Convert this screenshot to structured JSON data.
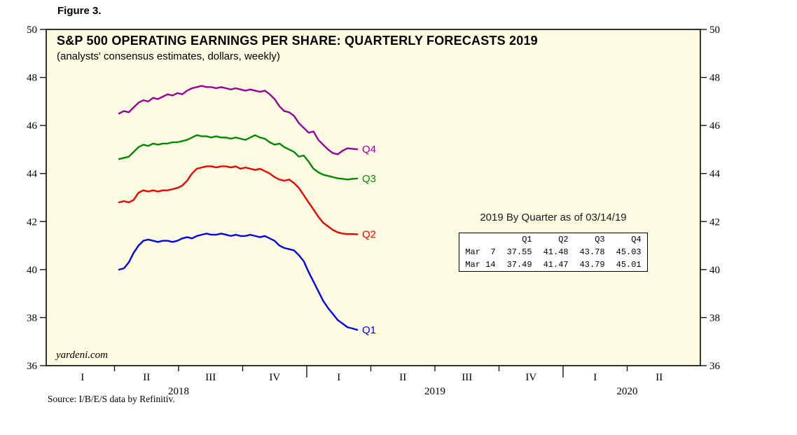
{
  "figure_label": "Figure 3.",
  "chart": {
    "title": "S&P 500 OPERATING EARNINGS PER SHARE: QUARTERLY FORECASTS 2019",
    "subtitle": "(analysts' consensus estimates, dollars, weekly)",
    "watermark": "yardeni.com",
    "source": "Source: I/B/E/S data by Refinitiv."
  },
  "annotation": {
    "title": "2019 By Quarter as of 03/14/19",
    "table": {
      "columns": [
        "Q1",
        "Q2",
        "Q3",
        "Q4"
      ],
      "rows": [
        {
          "label": "Mar  7",
          "values": [
            "37.55",
            "41.48",
            "43.78",
            "45.03"
          ]
        },
        {
          "label": "Mar 14",
          "values": [
            "37.49",
            "41.47",
            "43.79",
            "45.01"
          ]
        }
      ]
    }
  },
  "colors": {
    "plot_background": "#FDFCE2",
    "axis": "#000000"
  },
  "chart_data": {
    "type": "line",
    "title": "S&P 500 OPERATING EARNINGS PER SHARE: QUARTERLY FORECASTS 2019",
    "subtitle": "(analysts' consensus estimates, dollars, weekly)",
    "ylabel": "dollars",
    "ylim": [
      36,
      50
    ],
    "y_ticks": [
      36,
      38,
      40,
      42,
      44,
      46,
      48,
      50
    ],
    "grid": false,
    "x_unit": "week_index",
    "x_axis": {
      "quarter_labels": [
        "I",
        "II",
        "III",
        "IV",
        "I",
        "II",
        "III",
        "IV",
        "I",
        "II"
      ],
      "year_labels": [
        "2018",
        "2019",
        "2020"
      ],
      "year_quarter_spans": [
        [
          0,
          3
        ],
        [
          4,
          7
        ],
        [
          8,
          9
        ]
      ]
    },
    "series": [
      {
        "name": "Q4",
        "color": "#990099",
        "values": [
          46.5,
          46.6,
          46.55,
          46.75,
          46.95,
          47.05,
          47.0,
          47.15,
          47.1,
          47.2,
          47.3,
          47.25,
          47.35,
          47.3,
          47.45,
          47.55,
          47.6,
          47.65,
          47.6,
          47.6,
          47.55,
          47.6,
          47.55,
          47.5,
          47.55,
          47.5,
          47.45,
          47.5,
          47.45,
          47.4,
          47.45,
          47.3,
          47.1,
          46.8,
          46.6,
          46.55,
          46.4,
          46.1,
          45.9,
          45.7,
          45.75,
          45.4,
          45.2,
          45.0,
          44.85,
          44.8,
          44.95,
          45.05,
          45.03,
          45.01
        ]
      },
      {
        "name": "Q3",
        "color": "#008A00",
        "values": [
          44.6,
          44.65,
          44.7,
          44.9,
          45.1,
          45.2,
          45.15,
          45.25,
          45.2,
          45.25,
          45.25,
          45.3,
          45.3,
          45.35,
          45.4,
          45.5,
          45.6,
          45.55,
          45.55,
          45.5,
          45.55,
          45.5,
          45.5,
          45.45,
          45.5,
          45.45,
          45.4,
          45.5,
          45.6,
          45.5,
          45.45,
          45.3,
          45.2,
          45.25,
          45.1,
          45.0,
          44.9,
          44.7,
          44.75,
          44.5,
          44.2,
          44.05,
          43.95,
          43.9,
          43.85,
          43.8,
          43.78,
          43.75,
          43.78,
          43.79
        ]
      },
      {
        "name": "Q2",
        "color": "#EE0000",
        "values": [
          42.8,
          42.85,
          42.8,
          42.9,
          43.2,
          43.3,
          43.25,
          43.3,
          43.25,
          43.3,
          43.3,
          43.35,
          43.4,
          43.5,
          43.7,
          44.0,
          44.2,
          44.25,
          44.3,
          44.3,
          44.25,
          44.3,
          44.3,
          44.25,
          44.3,
          44.2,
          44.25,
          44.2,
          44.15,
          44.2,
          44.1,
          44.0,
          43.85,
          43.75,
          43.7,
          43.75,
          43.6,
          43.4,
          43.1,
          42.8,
          42.5,
          42.2,
          41.95,
          41.8,
          41.65,
          41.55,
          41.5,
          41.48,
          41.48,
          41.47
        ]
      },
      {
        "name": "Q1",
        "color": "#0000EE",
        "values": [
          40.0,
          40.05,
          40.3,
          40.7,
          41.0,
          41.2,
          41.25,
          41.2,
          41.15,
          41.2,
          41.2,
          41.15,
          41.2,
          41.3,
          41.35,
          41.3,
          41.4,
          41.45,
          41.5,
          41.45,
          41.45,
          41.5,
          41.45,
          41.4,
          41.45,
          41.4,
          41.4,
          41.45,
          41.4,
          41.35,
          41.4,
          41.3,
          41.2,
          41.0,
          40.9,
          40.85,
          40.8,
          40.6,
          40.35,
          39.9,
          39.5,
          39.1,
          38.7,
          38.4,
          38.15,
          37.9,
          37.75,
          37.6,
          37.55,
          37.49
        ]
      }
    ]
  }
}
